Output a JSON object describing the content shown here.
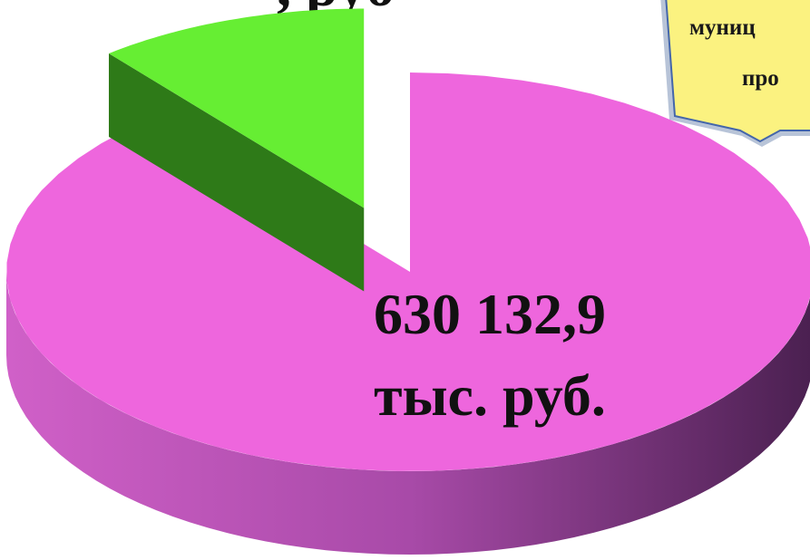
{
  "chart_data": {
    "type": "pie",
    "title": ", руб",
    "values": [
      630132.9,
      77000
    ],
    "value_labels": [
      "630 132,9",
      null
    ],
    "unit_label": "тыс. руб.",
    "colors": [
      "#ee66dd",
      "#66ee33"
    ],
    "callout_lines": [
      "муниц",
      "про"
    ]
  }
}
